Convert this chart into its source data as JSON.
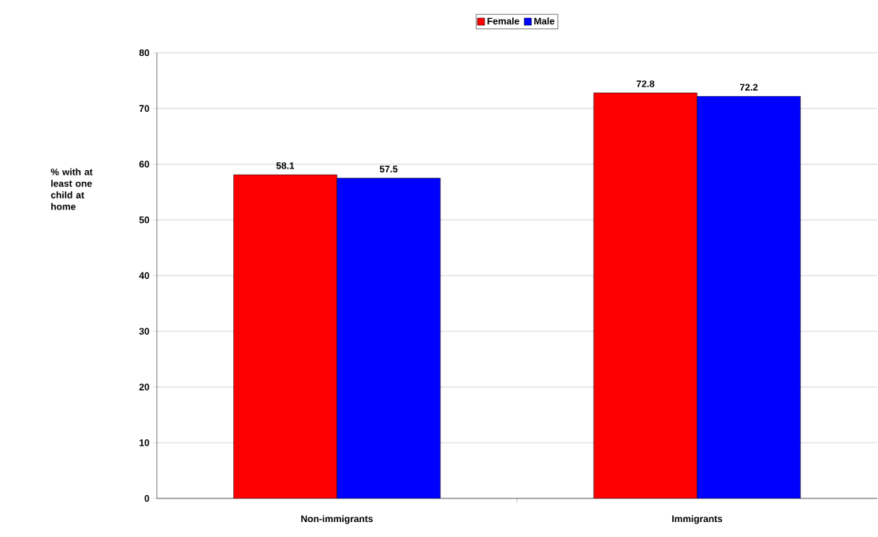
{
  "chart_data": {
    "type": "bar",
    "ylabel": "% with at least one child at home",
    "categories": [
      "Non-immigrants",
      "Immigrants"
    ],
    "series": [
      {
        "name": "Female",
        "color": "#ff0000",
        "values": [
          58.1,
          72.8
        ]
      },
      {
        "name": "Male",
        "color": "#0000ff",
        "values": [
          57.5,
          72.2
        ]
      }
    ],
    "ylim": [
      0,
      80
    ],
    "yticks": [
      0,
      10,
      20,
      30,
      40,
      50,
      60,
      70,
      80
    ],
    "grid": "y",
    "legend": "top",
    "data_labels": true
  }
}
